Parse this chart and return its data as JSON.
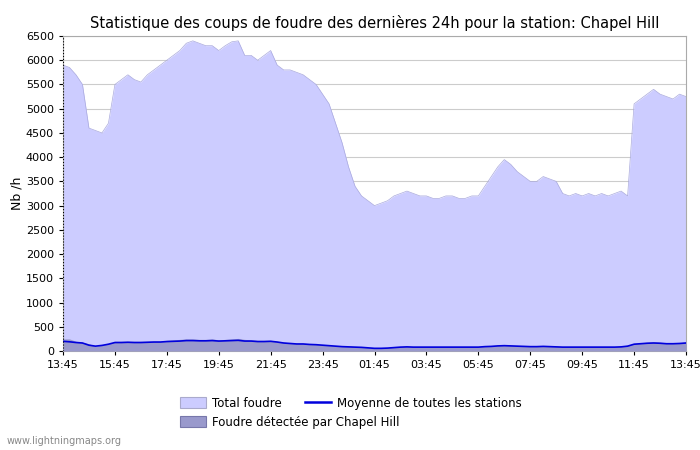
{
  "title": "Statistique des coups de foudre des dernières 24h pour la station: Chapel Hill",
  "ylabel": "Nb /h",
  "ylim": [
    0,
    6500
  ],
  "yticks": [
    0,
    500,
    1000,
    1500,
    2000,
    2500,
    3000,
    3500,
    4000,
    4500,
    5000,
    5500,
    6000,
    6500
  ],
  "xtick_labels": [
    "13:45",
    "15:45",
    "17:45",
    "19:45",
    "21:45",
    "23:45",
    "01:45",
    "03:45",
    "05:45",
    "07:45",
    "09:45",
    "11:45",
    "13:45"
  ],
  "fill_color_total": "#ccccff",
  "fill_color_chapel": "#9999cc",
  "line_color": "#0000dd",
  "bg_color": "#ffffff",
  "grid_color": "#cccccc",
  "watermark": "www.lightningmaps.org",
  "legend_total": "Total foudre",
  "legend_moyenne": "Moyenne de toutes les stations",
  "legend_chapel": "Foudre détectée par Chapel Hill",
  "total_y": [
    5900,
    5850,
    5700,
    5500,
    4600,
    4550,
    4500,
    4700,
    5500,
    5600,
    5700,
    5600,
    5550,
    5700,
    5800,
    5900,
    6000,
    6100,
    6200,
    6350,
    6400,
    6350,
    6300,
    6300,
    6200,
    6300,
    6380,
    6400,
    6100,
    6100,
    6000,
    6100,
    6200,
    5900,
    5800,
    5800,
    5750,
    5700,
    5600,
    5500,
    5300,
    5100,
    4700,
    4300,
    3800,
    3400,
    3200,
    3100,
    3000,
    3050,
    3100,
    3200,
    3250,
    3300,
    3250,
    3200,
    3200,
    3150,
    3150,
    3200,
    3200,
    3150,
    3150,
    3200,
    3200,
    3400,
    3600,
    3800,
    3950,
    3850,
    3700,
    3600,
    3500,
    3500,
    3600,
    3550,
    3500,
    3250,
    3200,
    3250,
    3200,
    3250,
    3200,
    3250,
    3200,
    3250,
    3300,
    3200,
    5100,
    5200,
    5300,
    5400,
    5300,
    5250,
    5200,
    5300,
    5250
  ],
  "chapel_y": [
    250,
    250,
    200,
    180,
    150,
    100,
    120,
    150,
    200,
    200,
    200,
    200,
    200,
    200,
    200,
    200,
    220,
    230,
    240,
    250,
    250,
    240,
    240,
    250,
    230,
    240,
    250,
    260,
    240,
    230,
    220,
    220,
    220,
    200,
    180,
    170,
    160,
    160,
    150,
    140,
    130,
    120,
    110,
    100,
    100,
    90,
    80,
    70,
    60,
    60,
    70,
    80,
    90,
    100,
    90,
    90,
    90,
    90,
    90,
    90,
    90,
    90,
    90,
    90,
    90,
    100,
    110,
    120,
    130,
    120,
    110,
    110,
    100,
    100,
    110,
    100,
    100,
    90,
    90,
    90,
    90,
    90,
    90,
    90,
    90,
    90,
    100,
    120,
    160,
    170,
    180,
    190,
    180,
    170,
    170,
    170,
    190
  ],
  "moyenne_y": [
    200,
    190,
    175,
    165,
    120,
    100,
    115,
    140,
    175,
    175,
    180,
    175,
    175,
    180,
    185,
    185,
    195,
    200,
    205,
    215,
    215,
    210,
    210,
    215,
    205,
    210,
    215,
    220,
    205,
    205,
    195,
    195,
    200,
    185,
    165,
    155,
    145,
    145,
    135,
    130,
    120,
    110,
    100,
    90,
    85,
    80,
    75,
    65,
    55,
    55,
    60,
    70,
    80,
    85,
    80,
    80,
    80,
    80,
    80,
    80,
    80,
    80,
    80,
    80,
    80,
    90,
    95,
    105,
    110,
    105,
    100,
    95,
    90,
    90,
    95,
    90,
    85,
    80,
    80,
    80,
    80,
    80,
    80,
    80,
    80,
    80,
    85,
    100,
    140,
    150,
    160,
    165,
    160,
    150,
    150,
    155,
    165
  ]
}
